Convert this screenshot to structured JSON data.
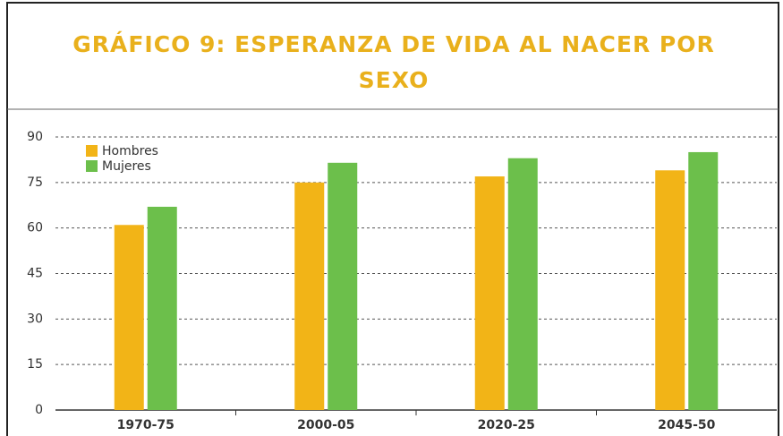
{
  "chart_data": {
    "type": "bar",
    "title": "GRÁFICO 9: ESPERANZA DE VIDA AL NACER POR SEXO",
    "categories": [
      "1970-75",
      "2000-05",
      "2020-25",
      "2045-50"
    ],
    "series": [
      {
        "name": "Hombres",
        "color": "#f2b417",
        "values": [
          61,
          75,
          77,
          79
        ]
      },
      {
        "name": "Mujeres",
        "color": "#6cbf4b",
        "values": [
          67,
          81.5,
          83,
          85
        ]
      }
    ],
    "ylim": [
      0,
      90
    ],
    "yticks": [
      0,
      15,
      30,
      45,
      60,
      75,
      90
    ],
    "grid": true,
    "legend": "top-left"
  }
}
